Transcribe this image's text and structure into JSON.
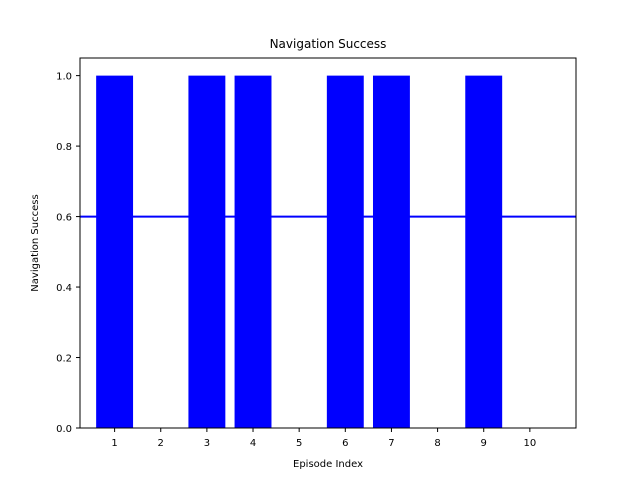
{
  "chart_data": {
    "type": "bar",
    "title": "Navigation Success",
    "xlabel": "Episode Index",
    "ylabel": "Navigation Success",
    "categories": [
      "1",
      "2",
      "3",
      "4",
      "5",
      "6",
      "7",
      "8",
      "9",
      "10"
    ],
    "values": [
      1,
      0,
      1,
      1,
      0,
      1,
      1,
      0,
      1,
      0
    ],
    "ylim": [
      0,
      1.05
    ],
    "xlim": [
      0.25,
      11.0
    ],
    "yticks": [
      "0.0",
      "0.2",
      "0.4",
      "0.6",
      "0.8",
      "1.0"
    ],
    "reference_line": {
      "y": 0.6
    },
    "bar_color": "#0000ff",
    "line_color": "#0000ff",
    "grid": false
  }
}
